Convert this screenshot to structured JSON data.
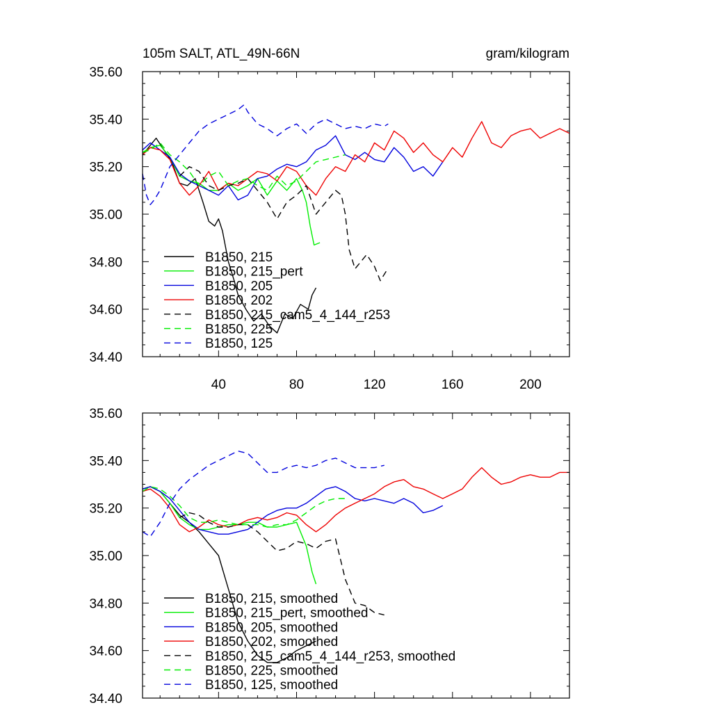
{
  "chart_data": [
    {
      "type": "line",
      "title": "105m SALT, ATL_49N-66N",
      "units": "gram/kilogram",
      "xlim": [
        1,
        220
      ],
      "ylim": [
        34.4,
        35.6
      ],
      "x_ticks": [
        40,
        80,
        120,
        160,
        200
      ],
      "x_tick_labels": [
        "40",
        "80",
        "120",
        "160",
        "200"
      ],
      "y_ticks": [
        34.4,
        34.6,
        34.8,
        35.0,
        35.2,
        35.4,
        35.6
      ],
      "y_tick_labels": [
        "34.40",
        "34.60",
        "34.80",
        "35.00",
        "35.20",
        "35.40",
        "35.60"
      ],
      "legend_position": "bottom-left",
      "series": [
        {
          "name": "B1850, 215",
          "color": "#000000",
          "dash": "solid",
          "x": [
            1,
            5,
            8,
            12,
            16,
            20,
            24,
            28,
            30,
            32,
            35,
            38,
            40,
            42,
            45,
            48,
            50,
            54,
            58,
            62,
            66,
            70,
            74,
            78,
            82,
            86,
            88,
            90
          ],
          "y": [
            35.25,
            35.29,
            35.32,
            35.27,
            35.22,
            35.13,
            35.12,
            35.15,
            35.1,
            35.05,
            34.97,
            34.95,
            34.98,
            34.93,
            34.8,
            34.72,
            34.66,
            34.6,
            34.55,
            34.58,
            34.53,
            34.5,
            34.58,
            34.56,
            34.62,
            34.6,
            34.66,
            34.69
          ]
        },
        {
          "name": "B1850, 215_pert",
          "color": "#00ee00",
          "dash": "solid",
          "x": [
            1,
            5,
            10,
            15,
            20,
            25,
            30,
            35,
            40,
            45,
            50,
            55,
            60,
            65,
            70,
            75,
            80,
            83,
            85,
            87,
            89,
            92
          ],
          "y": [
            35.26,
            35.28,
            35.29,
            35.24,
            35.16,
            35.14,
            35.13,
            35.1,
            35.1,
            35.13,
            35.1,
            35.12,
            35.15,
            35.08,
            35.14,
            35.1,
            35.15,
            35.1,
            35.05,
            34.95,
            34.87,
            34.88
          ]
        },
        {
          "name": "B1850, 205",
          "color": "#0000dd",
          "dash": "solid",
          "x": [
            1,
            5,
            10,
            15,
            20,
            25,
            30,
            35,
            40,
            45,
            50,
            55,
            60,
            65,
            70,
            75,
            80,
            85,
            90,
            95,
            100,
            105,
            110,
            115,
            120,
            125,
            130,
            135,
            140,
            145,
            150,
            155
          ],
          "y": [
            35.27,
            35.3,
            35.27,
            35.24,
            35.17,
            35.14,
            35.12,
            35.1,
            35.08,
            35.12,
            35.06,
            35.08,
            35.15,
            35.16,
            35.19,
            35.21,
            35.2,
            35.22,
            35.27,
            35.29,
            35.33,
            35.25,
            35.23,
            35.26,
            35.23,
            35.22,
            35.28,
            35.24,
            35.18,
            35.2,
            35.16,
            35.22
          ]
        },
        {
          "name": "B1850, 202",
          "color": "#ee0000",
          "dash": "solid",
          "x": [
            1,
            5,
            10,
            15,
            20,
            25,
            30,
            35,
            40,
            45,
            50,
            55,
            60,
            65,
            70,
            75,
            80,
            85,
            90,
            95,
            100,
            105,
            110,
            115,
            120,
            125,
            130,
            135,
            140,
            145,
            150,
            155,
            160,
            165,
            170,
            175,
            180,
            185,
            190,
            195,
            200,
            205,
            210,
            215,
            220
          ],
          "y": [
            35.25,
            35.28,
            35.27,
            35.23,
            35.13,
            35.08,
            35.12,
            35.18,
            35.1,
            35.13,
            35.12,
            35.15,
            35.18,
            35.17,
            35.14,
            35.2,
            35.18,
            35.12,
            35.08,
            35.15,
            35.2,
            35.18,
            35.25,
            35.22,
            35.3,
            35.27,
            35.35,
            35.32,
            35.26,
            35.3,
            35.25,
            35.22,
            35.28,
            35.24,
            35.32,
            35.39,
            35.3,
            35.28,
            35.33,
            35.35,
            35.36,
            35.32,
            35.34,
            35.36,
            35.34
          ]
        },
        {
          "name": "B1850, 215_cam5_4_144_r253",
          "color": "#000000",
          "dash": "dashed",
          "x": [
            20,
            25,
            30,
            35,
            40,
            45,
            50,
            55,
            60,
            65,
            70,
            75,
            80,
            85,
            90,
            95,
            100,
            103,
            105,
            107,
            110,
            113,
            116,
            120,
            123,
            126
          ],
          "y": [
            35.16,
            35.2,
            35.18,
            35.12,
            35.1,
            35.12,
            35.13,
            35.15,
            35.1,
            35.05,
            34.98,
            35.05,
            35.08,
            35.12,
            35.0,
            35.05,
            35.1,
            35.08,
            35.0,
            34.85,
            34.77,
            34.8,
            34.83,
            34.78,
            34.72,
            34.76
          ]
        },
        {
          "name": "B1850, 225",
          "color": "#00ee00",
          "dash": "dashed",
          "x": [
            1,
            5,
            10,
            15,
            20,
            25,
            30,
            35,
            40,
            45,
            50,
            55,
            60,
            65,
            70,
            75,
            80,
            85,
            90,
            95,
            100,
            105
          ],
          "y": [
            35.26,
            35.27,
            35.3,
            35.25,
            35.22,
            35.18,
            35.12,
            35.16,
            35.18,
            35.12,
            35.14,
            35.15,
            35.12,
            35.1,
            35.16,
            35.12,
            35.14,
            35.18,
            35.22,
            35.23,
            35.24,
            35.25
          ]
        },
        {
          "name": "B1850, 125",
          "color": "#0000dd",
          "dash": "dashed",
          "x": [
            1,
            3,
            5,
            7,
            10,
            15,
            20,
            25,
            30,
            35,
            40,
            45,
            50,
            53,
            55,
            60,
            65,
            70,
            75,
            80,
            85,
            90,
            95,
            100,
            105,
            110,
            115,
            120,
            125,
            127
          ],
          "y": [
            35.17,
            35.08,
            35.04,
            35.06,
            35.1,
            35.2,
            35.25,
            35.3,
            35.35,
            35.38,
            35.4,
            35.42,
            35.44,
            35.46,
            35.43,
            35.38,
            35.36,
            35.33,
            35.36,
            35.38,
            35.34,
            35.38,
            35.4,
            35.38,
            35.36,
            35.37,
            35.36,
            35.38,
            35.37,
            35.38
          ]
        }
      ]
    },
    {
      "type": "line",
      "xlim": [
        1,
        220
      ],
      "ylim": [
        34.4,
        35.6
      ],
      "y_ticks": [
        34.4,
        34.6,
        34.8,
        35.0,
        35.2,
        35.4,
        35.6
      ],
      "y_tick_labels": [
        "34.40",
        "34.60",
        "34.80",
        "35.00",
        "35.20",
        "35.40",
        "35.60"
      ],
      "legend_position": "bottom-left",
      "series": [
        {
          "name": "B1850, 215, smoothed",
          "color": "#000000",
          "dash": "solid",
          "x": [
            1,
            5,
            10,
            15,
            20,
            25,
            30,
            35,
            40,
            45,
            50,
            55,
            60,
            65,
            70,
            75,
            80,
            85,
            90
          ],
          "y": [
            35.28,
            35.29,
            35.27,
            35.22,
            35.17,
            35.14,
            35.1,
            35.05,
            35.0,
            34.86,
            34.72,
            34.64,
            34.58,
            34.55,
            34.55,
            34.57,
            34.6,
            34.62,
            34.64
          ]
        },
        {
          "name": "B1850, 215_pert, smoothed",
          "color": "#00ee00",
          "dash": "solid",
          "x": [
            1,
            5,
            10,
            15,
            20,
            25,
            30,
            35,
            40,
            45,
            50,
            55,
            60,
            65,
            70,
            75,
            80,
            85,
            88,
            90
          ],
          "y": [
            35.28,
            35.29,
            35.27,
            35.22,
            35.16,
            35.13,
            35.11,
            35.11,
            35.12,
            35.13,
            35.13,
            35.14,
            35.14,
            35.12,
            35.12,
            35.13,
            35.14,
            35.04,
            34.93,
            34.88
          ]
        },
        {
          "name": "B1850, 205, smoothed",
          "color": "#0000dd",
          "dash": "solid",
          "x": [
            1,
            5,
            10,
            15,
            20,
            25,
            30,
            35,
            40,
            45,
            50,
            55,
            60,
            65,
            70,
            75,
            80,
            85,
            90,
            95,
            100,
            105,
            110,
            115,
            120,
            125,
            130,
            135,
            140,
            145,
            150,
            155
          ],
          "y": [
            35.28,
            35.29,
            35.27,
            35.24,
            35.19,
            35.14,
            35.11,
            35.1,
            35.09,
            35.09,
            35.1,
            35.11,
            35.14,
            35.17,
            35.19,
            35.2,
            35.2,
            35.22,
            35.25,
            35.28,
            35.29,
            35.27,
            35.24,
            35.23,
            35.24,
            35.23,
            35.22,
            35.24,
            35.22,
            35.18,
            35.19,
            35.21
          ]
        },
        {
          "name": "B1850, 202, smoothed",
          "color": "#ee0000",
          "dash": "solid",
          "x": [
            1,
            5,
            10,
            15,
            20,
            25,
            30,
            35,
            40,
            45,
            50,
            55,
            60,
            65,
            70,
            75,
            80,
            85,
            90,
            95,
            100,
            105,
            110,
            115,
            120,
            125,
            130,
            135,
            140,
            145,
            150,
            155,
            160,
            165,
            170,
            175,
            180,
            185,
            190,
            195,
            200,
            205,
            210,
            215,
            220
          ],
          "y": [
            35.27,
            35.28,
            35.25,
            35.2,
            35.13,
            35.1,
            35.12,
            35.15,
            35.13,
            35.12,
            35.13,
            35.15,
            35.16,
            35.15,
            35.16,
            35.18,
            35.17,
            35.13,
            35.1,
            35.13,
            35.17,
            35.2,
            35.22,
            35.24,
            35.26,
            35.29,
            35.31,
            35.32,
            35.29,
            35.28,
            35.26,
            35.24,
            35.26,
            35.28,
            35.33,
            35.37,
            35.33,
            35.3,
            35.31,
            35.33,
            35.34,
            35.33,
            35.33,
            35.35,
            35.35
          ]
        },
        {
          "name": "B1850, 215_cam5_4_144_r253, smoothed",
          "color": "#000000",
          "dash": "dashed",
          "x": [
            20,
            25,
            30,
            35,
            40,
            45,
            50,
            55,
            60,
            65,
            70,
            75,
            80,
            85,
            90,
            95,
            100,
            105,
            110,
            115,
            120,
            125
          ],
          "y": [
            35.16,
            35.18,
            35.17,
            35.14,
            35.12,
            35.12,
            35.13,
            35.13,
            35.1,
            35.06,
            35.02,
            35.03,
            35.06,
            35.05,
            35.03,
            35.06,
            35.07,
            34.9,
            34.8,
            34.79,
            34.76,
            34.75
          ]
        },
        {
          "name": "B1850, 225, smoothed",
          "color": "#00ee00",
          "dash": "dashed",
          "x": [
            1,
            5,
            10,
            15,
            20,
            25,
            30,
            35,
            40,
            45,
            50,
            55,
            60,
            65,
            70,
            75,
            80,
            85,
            90,
            95,
            100,
            105
          ],
          "y": [
            35.27,
            35.29,
            35.28,
            35.25,
            35.21,
            35.16,
            35.14,
            35.14,
            35.15,
            35.14,
            35.13,
            35.13,
            35.13,
            35.12,
            35.13,
            35.13,
            35.15,
            35.18,
            35.21,
            35.23,
            35.24,
            35.24
          ]
        },
        {
          "name": "B1850, 125, smoothed",
          "color": "#0000dd",
          "dash": "dashed",
          "x": [
            1,
            5,
            10,
            15,
            20,
            25,
            30,
            35,
            40,
            45,
            50,
            55,
            60,
            65,
            70,
            75,
            80,
            85,
            90,
            95,
            100,
            105,
            110,
            115,
            120,
            125
          ],
          "y": [
            35.1,
            35.08,
            35.14,
            35.22,
            35.28,
            35.32,
            35.35,
            35.38,
            35.4,
            35.42,
            35.44,
            35.43,
            35.39,
            35.35,
            35.35,
            35.37,
            35.38,
            35.37,
            35.38,
            35.4,
            35.41,
            35.39,
            35.37,
            35.37,
            35.37,
            35.38
          ]
        }
      ]
    }
  ]
}
